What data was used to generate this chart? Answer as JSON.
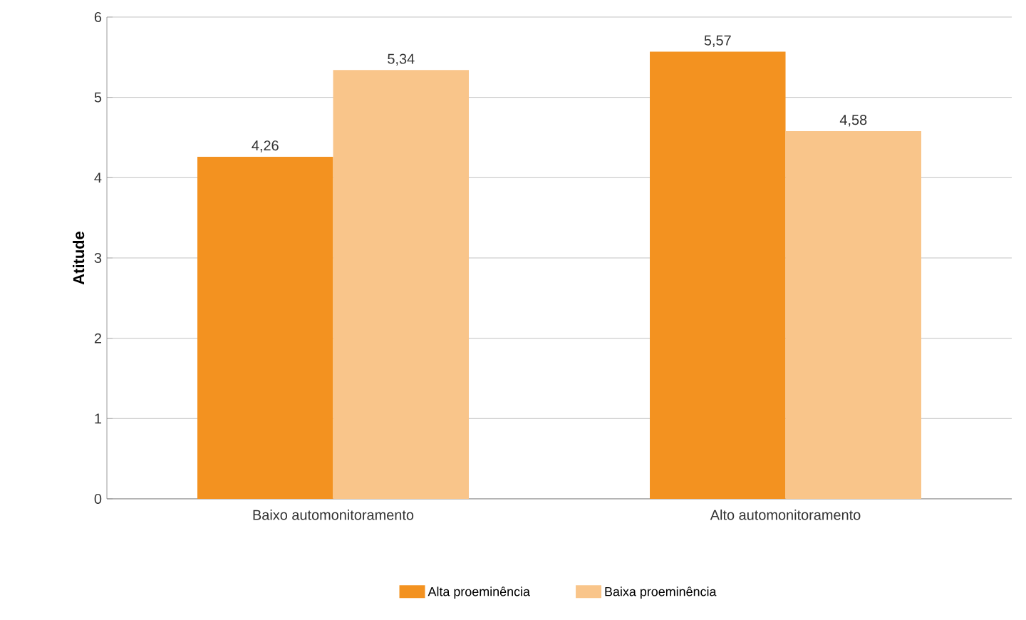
{
  "chart_data": {
    "type": "bar",
    "ylabel": "Atitude",
    "categories": [
      "Baixo automonitoramento",
      "Alto automonitoramento"
    ],
    "series": [
      {
        "name": "Alta proeminência",
        "color": "#f39220",
        "values": [
          4.26,
          5.57
        ],
        "value_labels": [
          "4,26",
          "5,57"
        ]
      },
      {
        "name": "Baixa proeminência",
        "color": "#f9c58a",
        "values": [
          5.34,
          4.58
        ],
        "value_labels": [
          "5,34",
          "4,58"
        ]
      }
    ],
    "ylim": [
      0,
      6
    ],
    "yticks": [
      0,
      1,
      2,
      3,
      4,
      5,
      6
    ],
    "grid": "y",
    "legend": "bottom"
  }
}
